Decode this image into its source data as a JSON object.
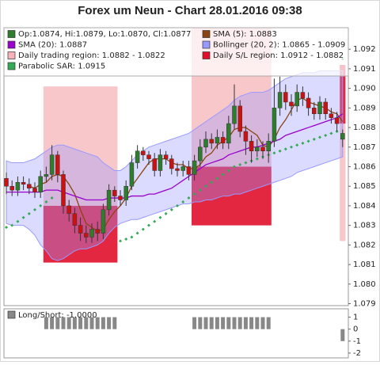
{
  "chart_data": [
    {
      "type": "candlestick",
      "title": "Forex um Neun - Chart 28.01.2016 09:38",
      "ylim": [
        1.0789,
        1.0931
      ],
      "yticks": [
        1.079,
        {
          "value": 1.08,
          "label": "1.080"
        },
        1.081,
        1.082,
        1.083,
        1.084,
        1.085,
        1.086,
        1.087,
        1.088,
        1.089,
        {
          "value": 1.09,
          "label": "1.090"
        },
        1.091,
        1.092
      ],
      "grid": false,
      "candles_name": "Op:1.0874, Hi:1.0879, Lo:1.0870, Cl:1.0877",
      "candles_color": "#2d7d2d",
      "up_color": "#2d7d2d",
      "down_color": "#cc1111",
      "open": [
        1.0854,
        1.085,
        1.0848,
        1.0852,
        1.0851,
        1.0849,
        1.0847,
        1.0855,
        1.0856,
        1.0866,
        1.0856,
        1.084,
        1.0836,
        1.083,
        1.0826,
        1.0824,
        1.0828,
        1.0826,
        1.0838,
        1.0848,
        1.0845,
        1.0843,
        1.085,
        1.0862,
        1.0868,
        1.0866,
        1.0864,
        1.0858,
        1.0866,
        1.0864,
        1.0859,
        1.0858,
        1.086,
        1.0856,
        1.0863,
        1.087,
        1.0874,
        1.0872,
        1.0875,
        1.0872,
        1.0882,
        1.0891,
        1.0878,
        1.0873,
        1.0868,
        1.087,
        1.0868,
        1.0873,
        1.089,
        1.0898,
        1.0893,
        1.0891,
        1.0898,
        1.0895,
        1.089,
        1.0887,
        1.0893,
        1.0887,
        1.0885,
        1.0874
      ],
      "high": [
        1.0857,
        1.0853,
        1.0855,
        1.0855,
        1.0854,
        1.0852,
        1.0858,
        1.086,
        1.0871,
        1.0868,
        1.0858,
        1.0843,
        1.0839,
        1.0834,
        1.083,
        1.0831,
        1.0832,
        1.0841,
        1.0851,
        1.085,
        1.0848,
        1.0853,
        1.0866,
        1.0871,
        1.087,
        1.0868,
        1.0867,
        1.0869,
        1.0868,
        1.0866,
        1.0862,
        1.0863,
        1.0863,
        1.0866,
        1.0874,
        1.0878,
        1.0877,
        1.0879,
        1.0878,
        1.0886,
        1.0902,
        1.0894,
        1.0881,
        1.0876,
        1.0874,
        1.0873,
        1.0877,
        1.0905,
        1.0906,
        1.0902,
        1.0897,
        1.0902,
        1.0901,
        1.0898,
        1.0893,
        1.0896,
        1.0895,
        1.089,
        1.0888,
        1.0879
      ],
      "low": [
        1.0846,
        1.0845,
        1.0845,
        1.0848,
        1.0846,
        1.0844,
        1.0844,
        1.0852,
        1.0853,
        1.0852,
        1.0836,
        1.0832,
        1.0826,
        1.0822,
        1.0821,
        1.0821,
        1.0822,
        1.0823,
        1.0835,
        1.0842,
        1.084,
        1.084,
        1.0848,
        1.0859,
        1.0863,
        1.0861,
        1.0855,
        1.0855,
        1.0861,
        1.0856,
        1.0855,
        1.0855,
        1.0853,
        1.0853,
        1.086,
        1.0867,
        1.0869,
        1.0869,
        1.0869,
        1.0869,
        1.0879,
        1.0875,
        1.0866,
        1.0862,
        1.0865,
        1.0864,
        1.0862,
        1.087,
        1.0886,
        1.0889,
        1.0886,
        1.0888,
        1.0891,
        1.0886,
        1.0884,
        1.0884,
        1.0884,
        1.0882,
        1.0878,
        1.087
      ],
      "close": [
        1.085,
        1.0848,
        1.0852,
        1.0851,
        1.0849,
        1.0847,
        1.0855,
        1.0856,
        1.0866,
        1.0856,
        1.084,
        1.0836,
        1.083,
        1.0826,
        1.0824,
        1.0828,
        1.0826,
        1.0838,
        1.0848,
        1.0845,
        1.0843,
        1.085,
        1.0862,
        1.0868,
        1.0866,
        1.0864,
        1.0858,
        1.0866,
        1.0864,
        1.0859,
        1.0858,
        1.086,
        1.0856,
        1.0863,
        1.087,
        1.0874,
        1.0872,
        1.0875,
        1.0872,
        1.0882,
        1.0891,
        1.0878,
        1.0873,
        1.0868,
        1.087,
        1.0868,
        1.0873,
        1.089,
        1.0898,
        1.0893,
        1.0891,
        1.0898,
        1.0895,
        1.089,
        1.0887,
        1.0893,
        1.0887,
        1.0885,
        1.0882,
        1.0877
      ],
      "series": [
        {
          "name": "SMA (5): 1.0883",
          "color": "#8b4513",
          "values": [
            null,
            null,
            null,
            null,
            1.085,
            1.0849,
            1.0851,
            1.0852,
            1.0855,
            1.0856,
            1.0855,
            1.0851,
            1.0846,
            1.0838,
            1.0831,
            1.0829,
            1.0827,
            1.0828,
            1.0833,
            1.0837,
            1.084,
            1.0844,
            1.085,
            1.0854,
            1.0858,
            1.0862,
            1.0864,
            1.0864,
            1.0864,
            1.0862,
            1.0861,
            1.0861,
            1.0859,
            1.0859,
            1.0861,
            1.0865,
            1.0867,
            1.0871,
            1.0873,
            1.0875,
            1.0879,
            1.088,
            1.088,
            1.0878,
            1.0876,
            1.0871,
            1.087,
            1.0874,
            1.088,
            1.0884,
            1.0889,
            1.0894,
            1.0895,
            1.0893,
            1.0892,
            1.0891,
            1.089,
            1.0888,
            1.0887,
            1.0883
          ]
        },
        {
          "name": "SMA (20): 1.0887",
          "color": "#9900cc",
          "values": [
            1.0847,
            1.0847,
            1.0847,
            1.0847,
            1.0847,
            1.0847,
            1.0847,
            1.0848,
            1.0848,
            1.0848,
            1.0847,
            1.0846,
            1.0845,
            1.0844,
            1.0843,
            1.0843,
            1.0843,
            1.0843,
            1.0844,
            1.0844,
            1.0844,
            1.0844,
            1.0845,
            1.0845,
            1.0845,
            1.0846,
            1.0846,
            1.0847,
            1.0848,
            1.0849,
            1.0851,
            1.0853,
            1.0855,
            1.0857,
            1.0859,
            1.0861,
            1.0862,
            1.0863,
            1.0864,
            1.0866,
            1.0867,
            1.0868,
            1.0869,
            1.087,
            1.087,
            1.0871,
            1.0872,
            1.0873,
            1.0874,
            1.0876,
            1.0877,
            1.0878,
            1.0879,
            1.088,
            1.0881,
            1.0882,
            1.0883,
            1.0884,
            1.0885,
            1.0887
          ]
        }
      ],
      "band": {
        "name": "Bollinger (20, 2): 1.0865 - 1.0909",
        "color": "#9999ff",
        "upper": [
          1.0863,
          1.0862,
          1.0862,
          1.0862,
          1.0863,
          1.0864,
          1.0866,
          1.0868,
          1.087,
          1.0871,
          1.0871,
          1.087,
          1.0869,
          1.0868,
          1.0867,
          1.0866,
          1.0865,
          1.0862,
          1.086,
          1.0858,
          1.0858,
          1.086,
          1.0863,
          1.0866,
          1.0868,
          1.087,
          1.0871,
          1.0872,
          1.0873,
          1.0874,
          1.0875,
          1.0876,
          1.0877,
          1.0879,
          1.0881,
          1.0883,
          1.0885,
          1.0887,
          1.0889,
          1.0891,
          1.0894,
          1.0896,
          1.0897,
          1.0898,
          1.0898,
          1.0898,
          1.0899,
          1.0901,
          1.0903,
          1.0905,
          1.0906,
          1.0907,
          1.0908,
          1.0908,
          1.0908,
          1.0909,
          1.0909,
          1.0909,
          1.0909,
          1.0909
        ],
        "lower": [
          1.0831,
          1.083,
          1.083,
          1.083,
          1.0828,
          1.0825,
          1.082,
          1.0817,
          1.0813,
          1.0812,
          1.0813,
          1.0815,
          1.0817,
          1.0818,
          1.0818,
          1.0819,
          1.082,
          1.0822,
          1.0826,
          1.0829,
          1.0831,
          1.0832,
          1.0833,
          1.0833,
          1.0834,
          1.0835,
          1.0836,
          1.0837,
          1.0838,
          1.0839,
          1.084,
          1.0841,
          1.0841,
          1.0842,
          1.0842,
          1.0843,
          1.0843,
          1.0844,
          1.0845,
          1.0845,
          1.0846,
          1.0846,
          1.0847,
          1.0848,
          1.0849,
          1.085,
          1.0851,
          1.0852,
          1.0853,
          1.0854,
          1.0855,
          1.0857,
          1.0858,
          1.0859,
          1.086,
          1.0861,
          1.0862,
          1.0863,
          1.0864,
          1.0865
        ]
      },
      "sar": {
        "name": "Parabolic SAR: 1.0915",
        "color": "#33aa55",
        "values": [
          1.0829,
          1.083,
          1.0832,
          1.0834,
          1.0836,
          1.0838,
          1.084,
          1.0842,
          1.0844,
          null,
          null,
          null,
          null,
          null,
          null,
          null,
          null,
          null,
          null,
          null,
          1.0822,
          1.0823,
          1.0824,
          1.0826,
          1.0828,
          1.083,
          1.0832,
          1.0834,
          1.0836,
          1.0838,
          1.084,
          1.0842,
          1.0844,
          1.0846,
          1.0848,
          1.085,
          1.0852,
          1.0854,
          1.0856,
          1.0858,
          1.086,
          1.0861,
          1.0862,
          1.0863,
          1.0864,
          1.0865,
          1.0866,
          1.0867,
          1.0868,
          1.0869,
          1.087,
          1.0871,
          1.0872,
          1.0873,
          1.0874,
          1.0875,
          1.0876,
          1.0877,
          1.0878,
          1.0915
        ]
      },
      "trading_name": "Daily trading region: 1.0882 - 1.0822",
      "trading_color": "#f6b4b8",
      "sl_name": "Daily S/L region: 1.0912 - 1.0882",
      "sl_color": "#e0102c",
      "regions": [
        {
          "start": 7,
          "end": 19,
          "trading": [
            1.084,
            1.0901
          ],
          "sl": [
            1.0811,
            1.084
          ]
        },
        {
          "start": 33,
          "end": 46,
          "trading": [
            1.086,
            1.0931
          ],
          "sl": [
            1.083,
            1.086
          ]
        },
        {
          "start": 59,
          "end": 59,
          "trading": [
            1.0822,
            1.0882
          ],
          "sl": [
            1.0882,
            1.0912
          ]
        }
      ]
    },
    {
      "type": "bar",
      "title": "Long/Short: -1.0000",
      "color": "#888888",
      "ylim": [
        -2.4,
        1.7
      ],
      "yticks": [
        1,
        0,
        -1,
        -2
      ],
      "values": [
        0,
        0,
        0,
        0,
        0,
        0,
        0,
        1,
        1,
        1,
        1,
        1,
        1,
        1,
        1,
        1,
        1,
        1,
        1,
        1,
        0,
        0,
        0,
        0,
        0,
        0,
        0,
        0,
        0,
        0,
        0,
        0,
        0,
        1,
        1,
        1,
        1,
        1,
        1,
        1,
        1,
        1,
        1,
        1,
        1,
        1,
        1,
        0,
        0,
        0,
        0,
        0,
        0,
        0,
        0,
        0,
        0,
        0,
        0,
        -1
      ]
    }
  ]
}
